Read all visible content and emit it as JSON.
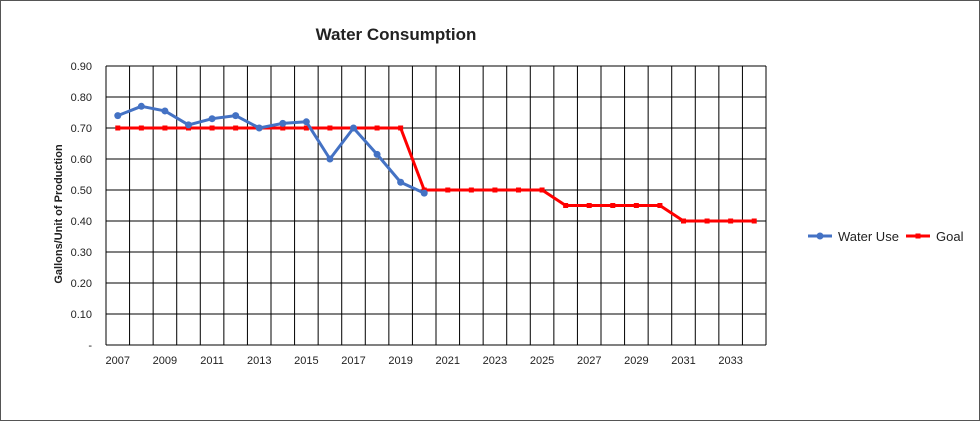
{
  "chart_data": {
    "type": "line",
    "title": "Water Consumption",
    "xlabel": "",
    "ylabel": "Gallons/Unit  of Production",
    "x": [
      2007,
      2008,
      2009,
      2010,
      2011,
      2012,
      2013,
      2014,
      2015,
      2016,
      2017,
      2018,
      2019,
      2020,
      2021,
      2022,
      2023,
      2024,
      2025,
      2026,
      2027,
      2028,
      2029,
      2030,
      2031,
      2032,
      2033,
      2034
    ],
    "x_tick_labels": [
      "2007",
      "2009",
      "2011",
      "2013",
      "2015",
      "2017",
      "2019",
      "2021",
      "2023",
      "2025",
      "2027",
      "2029",
      "2031",
      "2033"
    ],
    "y_tick_labels": [
      "-",
      "0.10",
      "0.20",
      "0.30",
      "0.40",
      "0.50",
      "0.60",
      "0.70",
      "0.80",
      "0.90"
    ],
    "ylim": [
      0,
      0.9
    ],
    "grid": true,
    "legend_position": "right",
    "series": [
      {
        "name": "Water Use",
        "color": "#4472C4",
        "values": [
          0.74,
          0.77,
          0.755,
          0.71,
          0.73,
          0.74,
          0.7,
          0.715,
          0.72,
          0.6,
          0.7,
          0.615,
          0.525,
          0.49,
          null,
          null,
          null,
          null,
          null,
          null,
          null,
          null,
          null,
          null,
          null,
          null,
          null,
          null
        ]
      },
      {
        "name": "Goal",
        "color": "#FF0000",
        "values": [
          0.7,
          0.7,
          0.7,
          0.7,
          0.7,
          0.7,
          0.7,
          0.7,
          0.7,
          0.7,
          0.7,
          0.7,
          0.7,
          0.5,
          0.5,
          0.5,
          0.5,
          0.5,
          0.5,
          0.45,
          0.45,
          0.45,
          0.45,
          0.45,
          0.4,
          0.4,
          0.4,
          0.4
        ]
      }
    ]
  }
}
